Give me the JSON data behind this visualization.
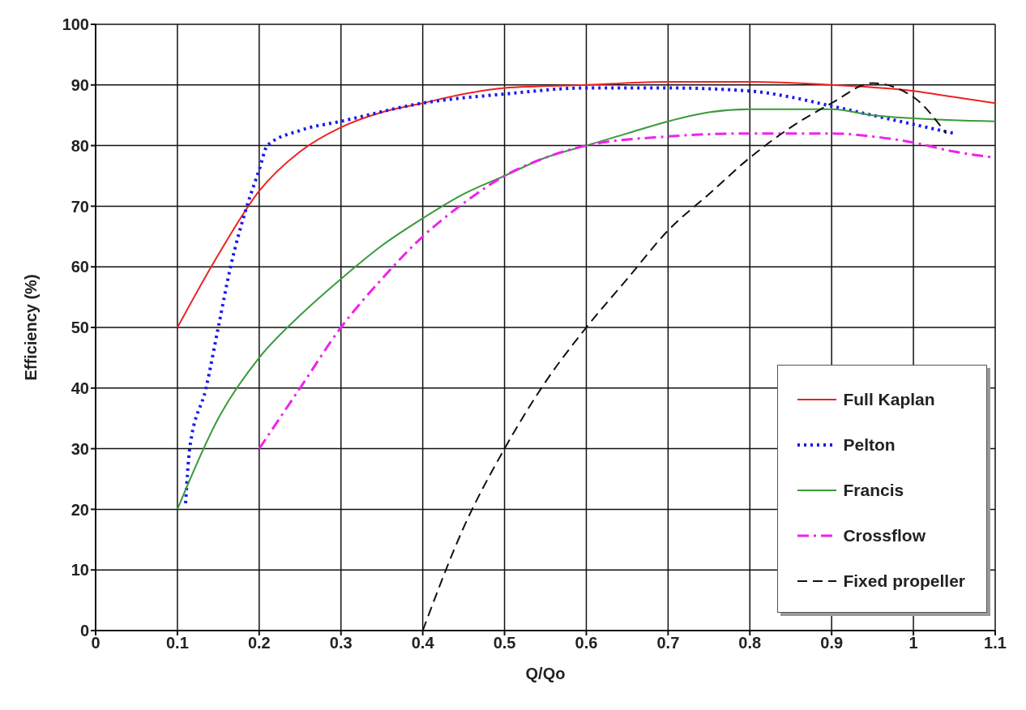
{
  "chart_data": {
    "type": "line",
    "xlabel": "Q/Qo",
    "ylabel": "Efficiency (%)",
    "xlim": [
      0,
      1.1
    ],
    "xticks": [
      0,
      0.1,
      0.2,
      0.3,
      0.4,
      0.5,
      0.6,
      0.7,
      0.8,
      0.9,
      1,
      1.1
    ],
    "ylim": [
      0,
      100
    ],
    "yticks": [
      0,
      10,
      20,
      30,
      40,
      50,
      60,
      70,
      80,
      90,
      100
    ],
    "grid": true,
    "legend": "bottom right",
    "marker": "none",
    "series": [
      {
        "name": "Full Kaplan",
        "color": "#ee2222",
        "line_style": "solid",
        "x": [
          0.1,
          0.15,
          0.2,
          0.25,
          0.3,
          0.35,
          0.4,
          0.45,
          0.5,
          0.6,
          0.7,
          0.8,
          0.9,
          1.0,
          1.05,
          1.1
        ],
        "values": [
          50,
          62,
          72.5,
          79,
          83,
          85.5,
          87,
          88.5,
          89.5,
          90,
          90.5,
          90.5,
          90,
          89,
          88,
          87
        ]
      },
      {
        "name": "Pelton",
        "color": "#1a1aee",
        "line_style": "dotted",
        "x": [
          0.11,
          0.115,
          0.135,
          0.15,
          0.165,
          0.185,
          0.2,
          0.21,
          0.25,
          0.3,
          0.4,
          0.5,
          0.6,
          0.7,
          0.8,
          0.85,
          0.9,
          0.95,
          1.0,
          1.05
        ],
        "values": [
          21,
          30,
          40,
          50,
          60,
          70,
          76,
          80,
          82.5,
          84,
          87,
          88.5,
          89.5,
          89.5,
          89,
          88,
          86.5,
          85,
          83.5,
          82
        ]
      },
      {
        "name": "Francis",
        "color": "#3a9a3a",
        "line_style": "solid",
        "x": [
          0.1,
          0.15,
          0.2,
          0.25,
          0.3,
          0.35,
          0.4,
          0.45,
          0.5,
          0.55,
          0.6,
          0.65,
          0.7,
          0.75,
          0.8,
          0.9,
          0.95,
          1.0,
          1.1
        ],
        "values": [
          20,
          35,
          45,
          52,
          58,
          63.5,
          68,
          72,
          75,
          78,
          80,
          82,
          84,
          85.5,
          86,
          86,
          85,
          84.5,
          84
        ]
      },
      {
        "name": "Crossflow",
        "color": "#ee22ee",
        "line_style": "dashdot",
        "x": [
          0.2,
          0.25,
          0.3,
          0.35,
          0.4,
          0.45,
          0.5,
          0.55,
          0.6,
          0.7,
          0.8,
          0.9,
          0.95,
          1.0,
          1.05,
          1.1
        ],
        "values": [
          30,
          40,
          50,
          58,
          65,
          70.5,
          75,
          78,
          80,
          81.5,
          82,
          82,
          81.5,
          80.5,
          79,
          78
        ]
      },
      {
        "name": "Fixed propeller",
        "color": "#111111",
        "line_style": "dashed",
        "x": [
          0.4,
          0.45,
          0.5,
          0.55,
          0.6,
          0.65,
          0.7,
          0.75,
          0.8,
          0.85,
          0.9,
          0.95,
          1.0,
          1.04
        ],
        "values": [
          0,
          17,
          30,
          41,
          50,
          58,
          66,
          72,
          78,
          83,
          87,
          90.3,
          88,
          82
        ]
      }
    ]
  }
}
